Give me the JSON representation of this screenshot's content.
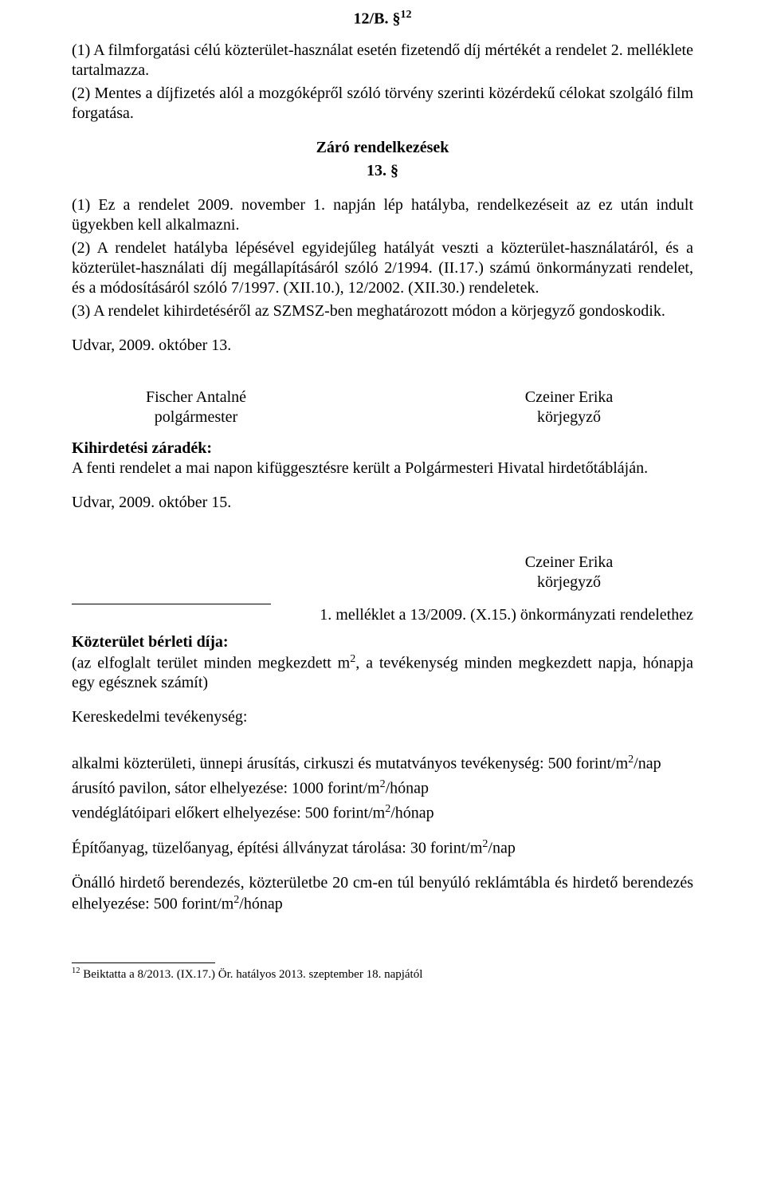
{
  "heading1": {
    "title": "12/B. §",
    "sup": "12"
  },
  "p1": "(1) A filmforgatási célú közterület-használat esetén fizetendő díj mértékét a rendelet 2. melléklete tartalmazza.",
  "p2": "(2) Mentes a díjfizetés alól a mozgóképről szóló törvény szerinti közérdekű célokat szolgáló film forgatása.",
  "closing_heading_line1": "Záró rendelkezések",
  "closing_heading_line2": "13. §",
  "p3": "(1) Ez a rendelet 2009. november 1. napján lép hatályba, rendelkezéseit az ez után indult ügyekben kell alkalmazni.",
  "p4": "(2) A rendelet hatályba lépésével egyidejűleg hatályát veszti a közterület-használatáról, és a közterület-használati díj megállapításáról szóló 2/1994. (II.17.) számú önkormányzati rendelet, és a módosításáról szóló 7/1997. (XII.10.), 12/2002. (XII.30.) rendeletek.",
  "p5": "(3) A rendelet kihirdetéséről az SZMSZ-ben meghatározott módon a körjegyző gondoskodik.",
  "date1": "Udvar, 2009. október 13.",
  "sig": {
    "left_name": "Fischer Antalné",
    "left_title": "polgármester",
    "right_name": "Czeiner Erika",
    "right_title": "körjegyző"
  },
  "kihird_heading": "Kihirdetési záradék:",
  "kihird_text": "A fenti rendelet a mai napon kifüggesztésre került a Polgármesteri Hivatal hirdetőtábláján.",
  "date2": "Udvar, 2009. október 15.",
  "sig2": {
    "name": "Czeiner Erika",
    "title": "körjegyző"
  },
  "attachment": "1. melléklet a 13/2009. (X.15.) önkormányzati rendelethez",
  "fees_heading": "Közterület bérleti díja:",
  "fees_intro_1": "(az elfoglalt terület minden megkezdett m",
  "fees_intro_sup": "2",
  "fees_intro_2": ", a tevékenység minden megkezdett napja, hónapja egy egésznek számít)",
  "comm_heading": "Kereskedelmi tevékenység:",
  "fee_line1_a": "alkalmi közterületi, ünnepi árusítás, cirkuszi és mutatványos tevékenység: 500 forint/m",
  "fee_line1_b": "/nap",
  "fee_line2_a": "árusító pavilon, sátor elhelyezése: 1000 forint/m",
  "fee_line2_b": "/hónap",
  "fee_line3_a": "vendéglátóipari előkert elhelyezése: 500 forint/m",
  "fee_line3_b": "/hónap",
  "fee_line4_a": "Építőanyag, tüzelőanyag, építési állványzat tárolása: 30 forint/m",
  "fee_line4_b": "/nap",
  "fee_line5_a": "Önálló hirdető berendezés, közterületbe 20 cm-en túl benyúló reklámtábla és hirdető berendezés elhelyezése: 500 forint/m",
  "fee_line5_b": "/hónap",
  "footnote_sup": "12",
  "footnote_text": " Beiktatta a 8/2013. (IX.17.) Ör. hatályos 2013. szeptember 18. napjától",
  "sup2": "2"
}
